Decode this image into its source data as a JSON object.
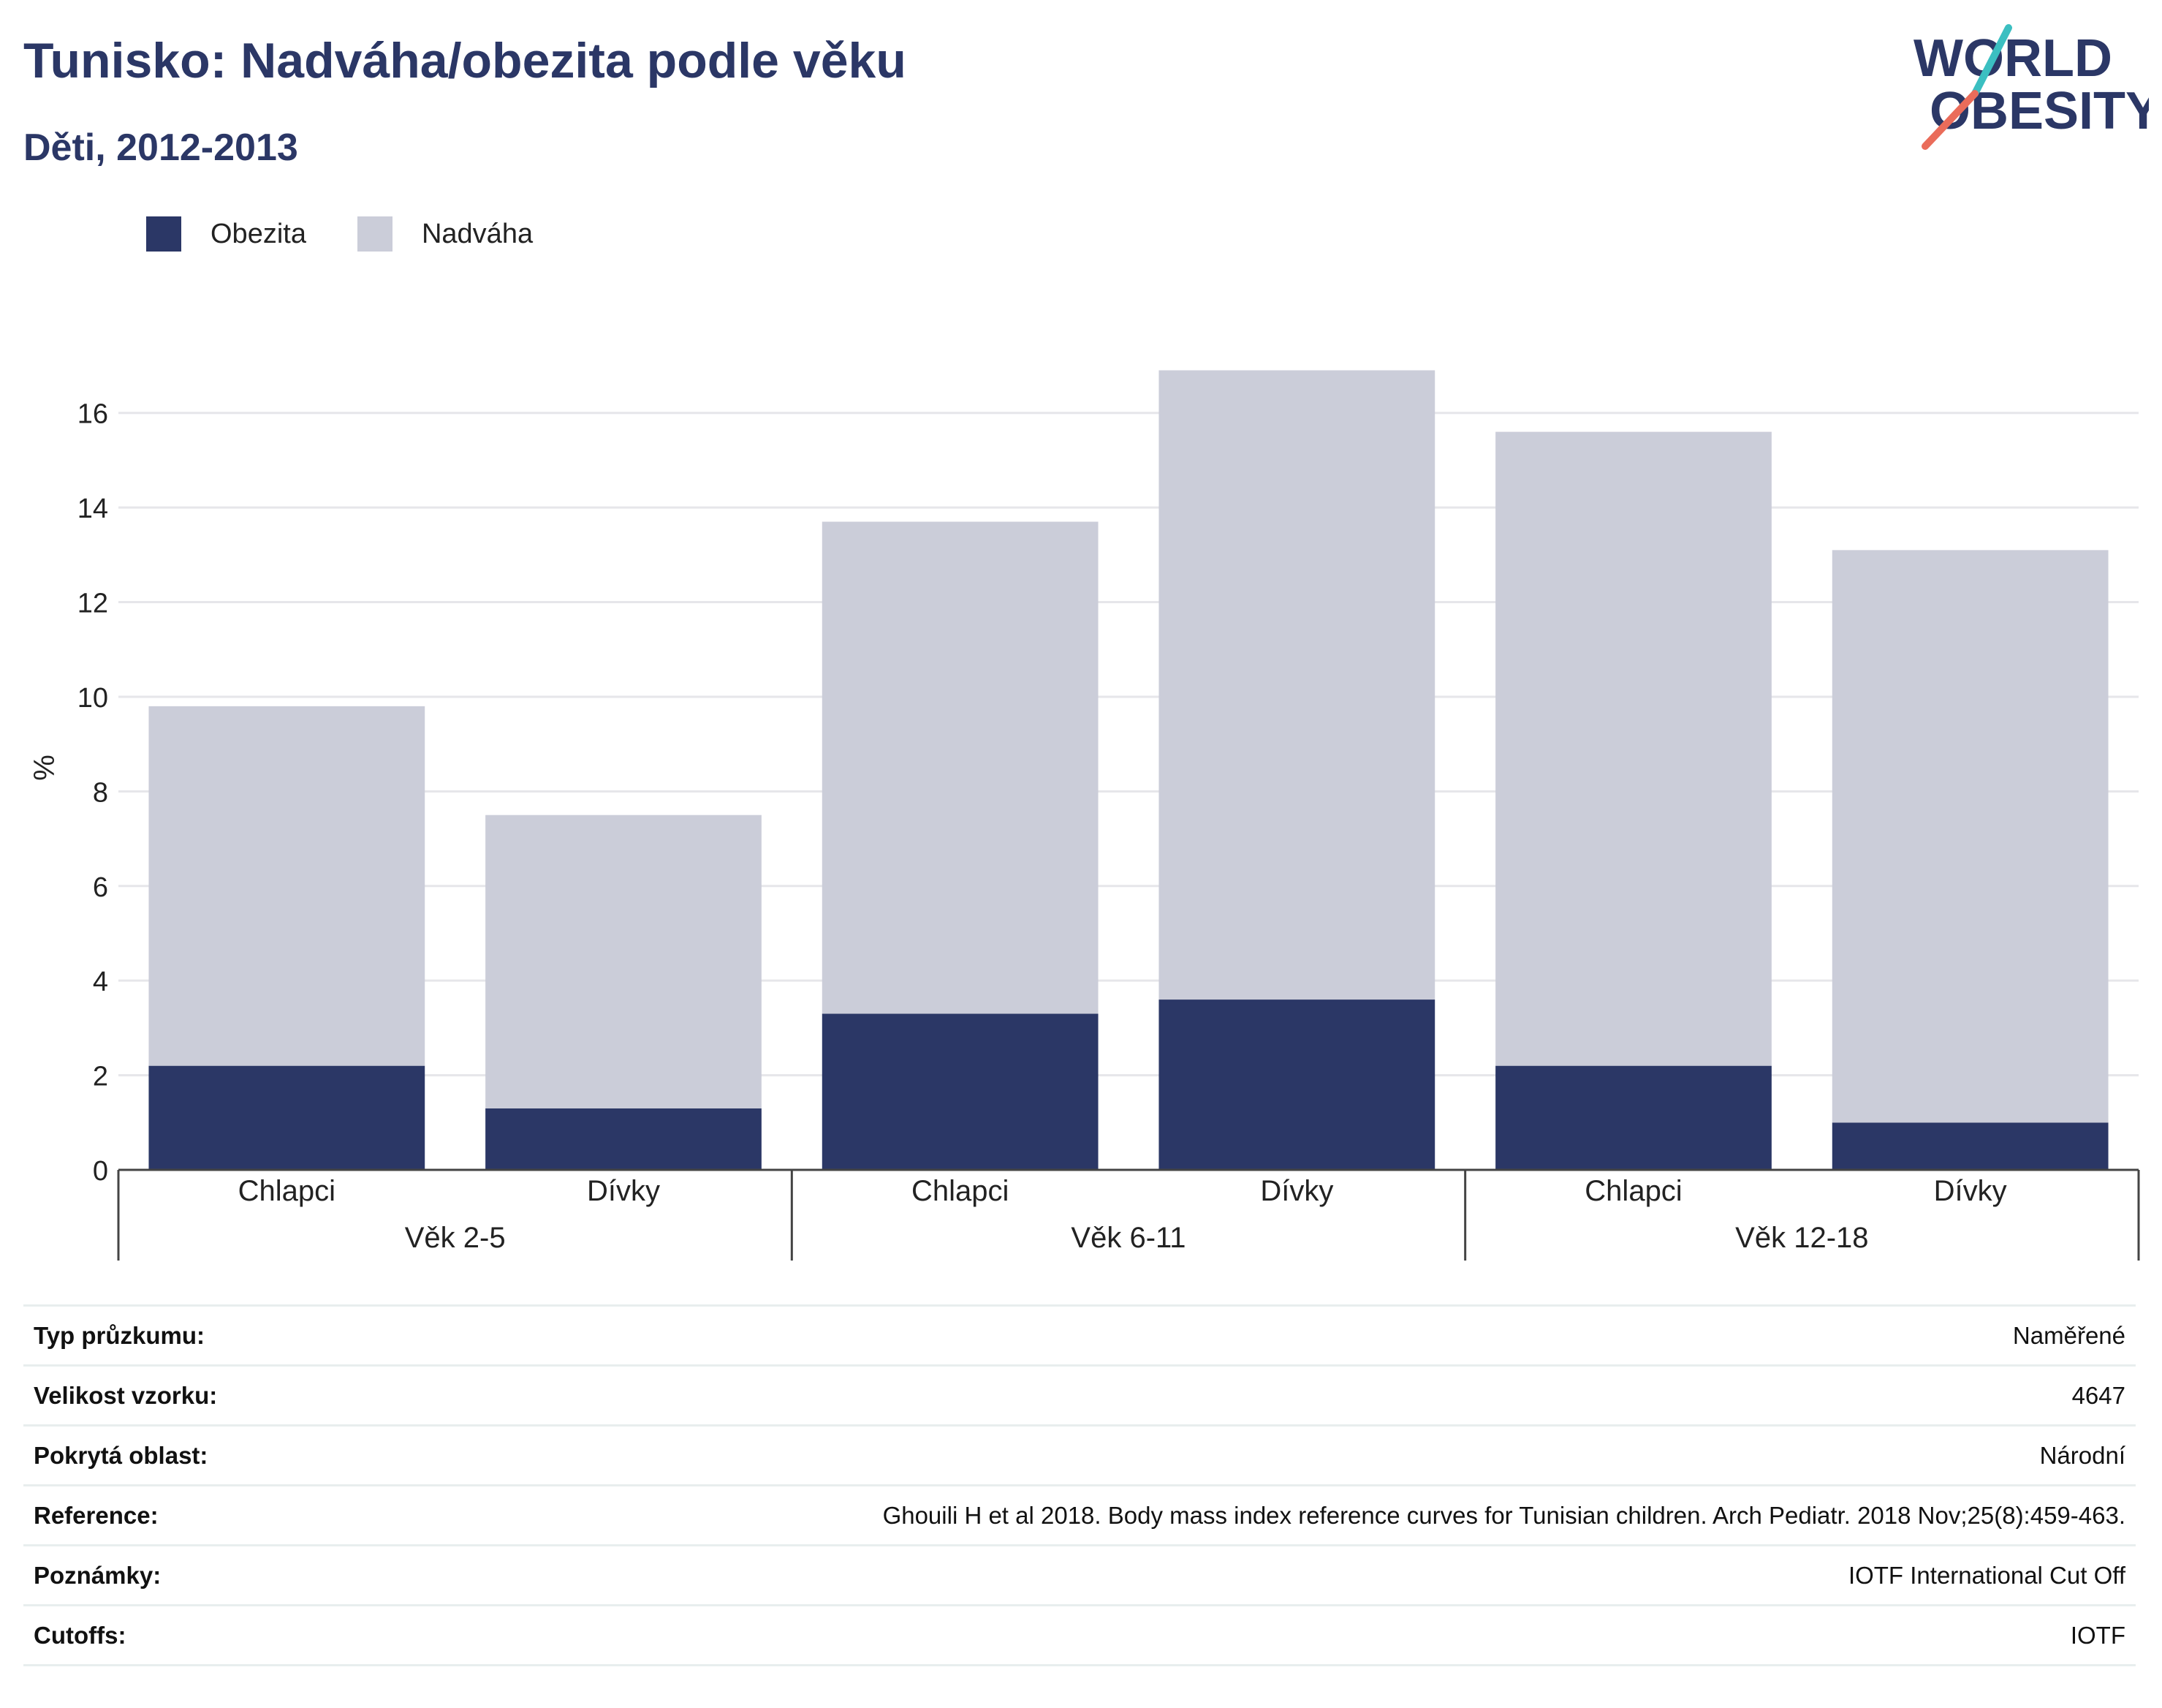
{
  "header": {
    "title": "Tunisko: Nadváha/obezita podle věku",
    "subtitle": "Děti, 2012-2013"
  },
  "logo": {
    "line1": "WORLD",
    "line2": "OBESITY",
    "icon": "world-obesity-logo",
    "colors": {
      "text": "#2b3766",
      "slash_top": "#3bbfc1",
      "slash_bottom": "#ea6c5a"
    }
  },
  "legend": {
    "items": [
      {
        "label": "Obezita",
        "color": "#2b3766"
      },
      {
        "label": "Nadváha",
        "color": "#cbcdd9"
      }
    ]
  },
  "chart_data": {
    "type": "bar",
    "stacked": true,
    "categories": [
      "Chlapci",
      "Dívky",
      "Chlapci",
      "Dívky",
      "Chlapci",
      "Dívky"
    ],
    "groups": [
      {
        "label": "Věk 2-5",
        "span": 2
      },
      {
        "label": "Věk 6-11",
        "span": 2
      },
      {
        "label": "Věk 12-18",
        "span": 2
      }
    ],
    "series": [
      {
        "name": "Obezita",
        "color": "#2b3766",
        "values": [
          2.2,
          1.3,
          3.3,
          3.6,
          2.2,
          1.0
        ]
      },
      {
        "name": "Nadváha",
        "color": "#cbcdd9",
        "values": [
          7.6,
          6.2,
          10.4,
          13.3,
          13.4,
          12.1
        ]
      }
    ],
    "ylabel": "%",
    "xlabel": "",
    "ylim": [
      0,
      17
    ],
    "yticks": [
      0,
      2,
      4,
      6,
      8,
      10,
      12,
      14,
      16
    ],
    "grid": true,
    "legend_position": "top-left"
  },
  "info": {
    "rows": [
      {
        "label": "Typ průzkumu:",
        "value": "Naměřené"
      },
      {
        "label": "Velikost vzorku:",
        "value": "4647"
      },
      {
        "label": "Pokrytá oblast:",
        "value": "Národní"
      },
      {
        "label": "Reference:",
        "value": "Ghouili H et al 2018. Body mass index reference curves for Tunisian children. Arch Pediatr. 2018 Nov;25(8):459-463."
      },
      {
        "label": "Poznámky:",
        "value": "IOTF International Cut Off"
      },
      {
        "label": "Cutoffs:",
        "value": "IOTF"
      }
    ]
  }
}
